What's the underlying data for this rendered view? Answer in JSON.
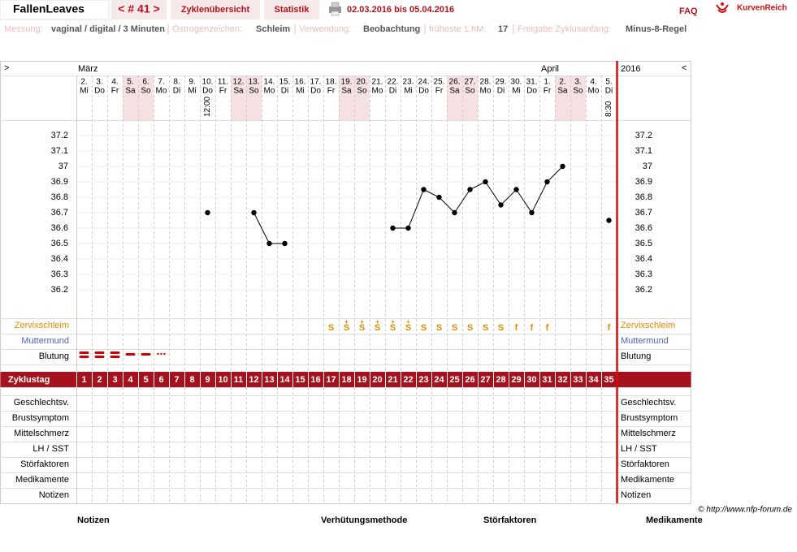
{
  "header": {
    "user": "FallenLeaves",
    "cycle_nav": "< # 41 >",
    "tabs": [
      "Zyklenübersicht",
      "Statistik"
    ],
    "date_range": "02.03.2016 bis 05.04.2016",
    "faq": "FAQ",
    "brand": "KurvenReich"
  },
  "settings": [
    {
      "label": "Messung:",
      "value": "vaginal / digital / 3 Minuten"
    },
    {
      "label": "Östrogenzeichen:",
      "value": "Schleim"
    },
    {
      "label": "Verwendung:",
      "value": "Beobachtung"
    },
    {
      "label": "früheste 1.hM:",
      "value": "17"
    },
    {
      "label": "Freigabe Zyklusanfang:",
      "value": "Minus-8-Regel"
    }
  ],
  "chart_data": {
    "type": "line",
    "nav": [
      ">",
      "<"
    ],
    "year": "2016",
    "months": [
      "März",
      "April"
    ],
    "days": [
      "2.",
      "3.",
      "4.",
      "5.",
      "6.",
      "7.",
      "8.",
      "9.",
      "10.",
      "11.",
      "12.",
      "13.",
      "14.",
      "15.",
      "16.",
      "17.",
      "18.",
      "19.",
      "20.",
      "21.",
      "22.",
      "23.",
      "24.",
      "25.",
      "26.",
      "27.",
      "28.",
      "29.",
      "30.",
      "31.",
      "1.",
      "2.",
      "3.",
      "4.",
      "5."
    ],
    "weekdays": [
      "Mi",
      "Do",
      "Fr",
      "Sa",
      "So",
      "Mo",
      "Di",
      "Mi",
      "Do",
      "Fr",
      "Sa",
      "So",
      "Mo",
      "Di",
      "Mi",
      "Do",
      "Fr",
      "Sa",
      "So",
      "Mo",
      "Di",
      "Mi",
      "Do",
      "Fr",
      "Sa",
      "So",
      "Mo",
      "Di",
      "Mi",
      "Do",
      "Fr",
      "Sa",
      "So",
      "Mo",
      "Di"
    ],
    "times": [
      null,
      null,
      null,
      null,
      null,
      null,
      null,
      null,
      "12:00",
      null,
      null,
      null,
      null,
      null,
      null,
      null,
      null,
      null,
      null,
      null,
      null,
      null,
      null,
      null,
      null,
      null,
      null,
      null,
      null,
      null,
      null,
      null,
      null,
      null,
      "8:30"
    ],
    "values": [
      null,
      null,
      null,
      null,
      null,
      null,
      null,
      null,
      36.7,
      null,
      null,
      36.7,
      36.5,
      36.5,
      null,
      null,
      null,
      null,
      null,
      null,
      36.6,
      36.6,
      36.85,
      36.8,
      36.7,
      36.85,
      36.9,
      36.75,
      36.85,
      36.7,
      36.9,
      37.0,
      null,
      null,
      36.65
    ],
    "color": "#000000",
    "ylim": [
      36.1,
      37.3
    ],
    "yticks": [
      36.2,
      36.3,
      36.4,
      36.5,
      36.6,
      36.7,
      36.8,
      36.9,
      37,
      37.1,
      37.2
    ],
    "grid": true,
    "cervical_label": "Zervixschleim",
    "cervical": [
      null,
      null,
      null,
      null,
      null,
      null,
      null,
      null,
      null,
      null,
      null,
      null,
      null,
      null,
      null,
      null,
      "S",
      "S+",
      "S+",
      "S+",
      "S+",
      "S+",
      "S",
      "S",
      "S",
      "S",
      "S",
      "S",
      "f",
      "f",
      "f",
      null,
      null,
      null,
      "f"
    ],
    "cervix_label": "Muttermund",
    "bleeding_label": "Blutung",
    "bleeding": [
      3,
      3,
      3,
      2,
      2,
      1,
      null,
      null,
      null,
      null,
      null,
      null,
      null,
      null,
      null,
      null,
      null,
      null,
      null,
      null,
      null,
      null,
      null,
      null,
      null,
      null,
      null,
      null,
      null,
      null,
      null,
      null,
      null,
      null,
      null
    ],
    "cycle_day_label": "Zyklustag",
    "cycle_days": [
      1,
      2,
      3,
      4,
      5,
      6,
      7,
      8,
      9,
      10,
      11,
      12,
      13,
      14,
      15,
      16,
      17,
      18,
      19,
      20,
      21,
      22,
      23,
      24,
      25,
      26,
      27,
      28,
      29,
      30,
      31,
      32,
      33,
      34,
      35
    ],
    "extra_rows": [
      "Geschlechtsv.",
      "Brustsymptom",
      "Mittelschmerz",
      "LH / SST",
      "Störfaktoren",
      "Medikamente",
      "Notizen"
    ]
  },
  "footer": {
    "credit": "© http://www.nfp-forum.de",
    "sections": [
      "Notizen",
      "Verhütungsmethode",
      "Störfaktoren",
      "Medikamente"
    ]
  }
}
